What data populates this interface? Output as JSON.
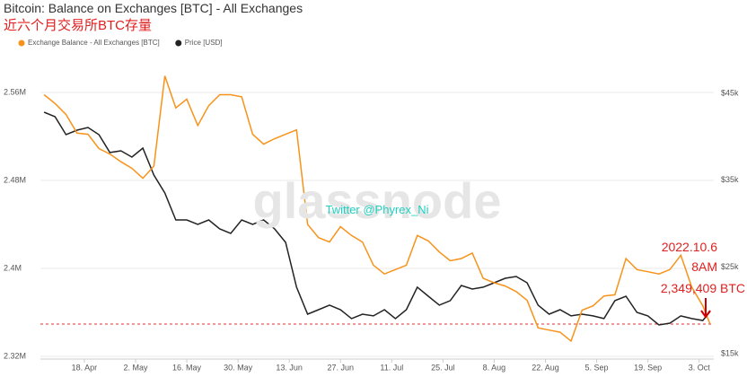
{
  "chart_data": {
    "type": "line",
    "title": "Bitcoin: Balance on Exchanges [BTC] - All Exchanges",
    "subtitle": "近六个月交易所BTC存量",
    "watermark": "glassnode",
    "credit": "Twitter @Phyrex_Ni",
    "annotations": [
      "2022.10.6",
      "8AM",
      "2,349,409 BTC"
    ],
    "reference_line": 2349409,
    "x": [
      "04-07",
      "04-10",
      "04-13",
      "04-16",
      "04-19",
      "04-22",
      "04-25",
      "04-28",
      "05-01",
      "05-04",
      "05-07",
      "05-10",
      "05-13",
      "05-16",
      "05-19",
      "05-22",
      "05-25",
      "05-28",
      "05-31",
      "06-03",
      "06-06",
      "06-09",
      "06-12",
      "06-15",
      "06-18",
      "06-21",
      "06-24",
      "06-27",
      "06-30",
      "07-03",
      "07-06",
      "07-09",
      "07-12",
      "07-15",
      "07-18",
      "07-21",
      "07-24",
      "07-27",
      "07-30",
      "08-02",
      "08-05",
      "08-08",
      "08-11",
      "08-14",
      "08-17",
      "08-20",
      "08-23",
      "08-26",
      "08-29",
      "09-01",
      "09-04",
      "09-07",
      "09-10",
      "09-13",
      "09-16",
      "09-19",
      "09-22",
      "09-25",
      "09-28",
      "10-01",
      "10-04",
      "10-06"
    ],
    "xlim": [
      "04-06",
      "10-07"
    ],
    "xticks": [
      {
        "value": "04-18",
        "label": "18. Apr"
      },
      {
        "value": "05-02",
        "label": "2. May"
      },
      {
        "value": "05-16",
        "label": "16. May"
      },
      {
        "value": "05-30",
        "label": "30. May"
      },
      {
        "value": "06-13",
        "label": "13. Jun"
      },
      {
        "value": "06-27",
        "label": "27. Jun"
      },
      {
        "value": "07-11",
        "label": "11. Jul"
      },
      {
        "value": "07-25",
        "label": "25. Jul"
      },
      {
        "value": "08-08",
        "label": "8. Aug"
      },
      {
        "value": "08-22",
        "label": "22. Aug"
      },
      {
        "value": "09-05",
        "label": "5. Sep"
      },
      {
        "value": "09-19",
        "label": "19. Sep"
      },
      {
        "value": "10-03",
        "label": "3. Oct"
      }
    ],
    "ylim": [
      2317600,
      2595100
    ],
    "yticks": [
      {
        "value": 2320000,
        "label": "2.32M"
      },
      {
        "value": 2400000,
        "label": "2.4M"
      },
      {
        "value": 2480000,
        "label": "2.48M"
      },
      {
        "value": 2560000,
        "label": "2.56M"
      }
    ],
    "y2lim": [
      14390,
      49550
    ],
    "y2ticks": [
      {
        "value": 15000,
        "label": "$15k"
      },
      {
        "value": 25000,
        "label": "$25k"
      },
      {
        "value": 35000,
        "label": "$35k"
      },
      {
        "value": 45000,
        "label": "$45k"
      }
    ],
    "grid": true,
    "series": [
      {
        "name": "Exchange Balance - All Exchanges [BTC]",
        "color": "#f7931a",
        "values": [
          2558000,
          2550000,
          2540000,
          2523000,
          2522000,
          2509000,
          2504000,
          2497000,
          2491000,
          2482000,
          2493000,
          2575000,
          2546000,
          2554000,
          2530000,
          2548000,
          2558000,
          2558000,
          2556000,
          2522000,
          2513000,
          2518000,
          2522000,
          2526000,
          2440000,
          2428000,
          2424000,
          2438000,
          2430000,
          2424000,
          2403000,
          2395000,
          2399000,
          2403000,
          2430000,
          2425000,
          2415000,
          2407000,
          2409000,
          2414000,
          2391000,
          2387000,
          2384000,
          2379000,
          2371000,
          2346000,
          2344000,
          2342000,
          2334000,
          2362000,
          2366000,
          2375000,
          2376000,
          2409000,
          2399000,
          2397000,
          2395000,
          2399000,
          2412000,
          2383000,
          2366000,
          2349409
        ]
      },
      {
        "name": "Price [USD]",
        "color": "#222222",
        "axis": "y2",
        "values": [
          42830,
          42310,
          40240,
          40760,
          41070,
          40240,
          38180,
          38380,
          37660,
          38690,
          35590,
          33520,
          30420,
          30420,
          29900,
          30420,
          29380,
          28870,
          30420,
          29900,
          30420,
          29380,
          27830,
          22670,
          19560,
          20080,
          20600,
          20080,
          19050,
          19560,
          19360,
          20080,
          19050,
          20080,
          22670,
          21630,
          20600,
          21120,
          22870,
          22460,
          22670,
          23180,
          23700,
          23900,
          23180,
          20600,
          19560,
          20080,
          19360,
          19560,
          19360,
          19050,
          21120,
          21630,
          19770,
          19360,
          18320,
          18530,
          19360,
          19050,
          18840,
          19870
        ]
      }
    ]
  }
}
